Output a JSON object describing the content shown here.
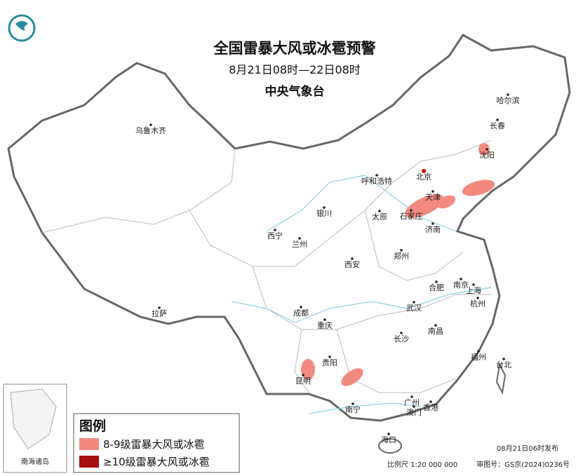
{
  "header": {
    "title": "全国雷暴大风或冰雹预警",
    "period": "8月21日08时—22日08时",
    "issuer": "中央气象台"
  },
  "cities": [
    "乌鲁木齐",
    "哈尔滨",
    "长春",
    "沈阳",
    "北京",
    "呼和浩特",
    "天津",
    "银川",
    "石家庄",
    "太原",
    "济南",
    "西宁",
    "兰州",
    "郑州",
    "西安",
    "合肥",
    "南京",
    "上海",
    "拉萨",
    "成都",
    "武汉",
    "杭州",
    "重庆",
    "南昌",
    "长沙",
    "贵阳",
    "福州",
    "昆明",
    "台北",
    "广州",
    "南宁",
    "澳门",
    "香港",
    "海口"
  ],
  "legend": {
    "title": "图例",
    "items": [
      {
        "label": "8-9级雷暴大风或冰雹",
        "color": "#f28a80"
      },
      {
        "label": "≥10级雷暴大风或冰雹",
        "color": "#a50f0f"
      }
    ]
  },
  "inset": {
    "label": "南海诸岛"
  },
  "footer": {
    "issued": "08月21日06时发布",
    "scale": "比例尺 1:20 000 000",
    "approval": "审图号：GS京(2024)0236号"
  }
}
